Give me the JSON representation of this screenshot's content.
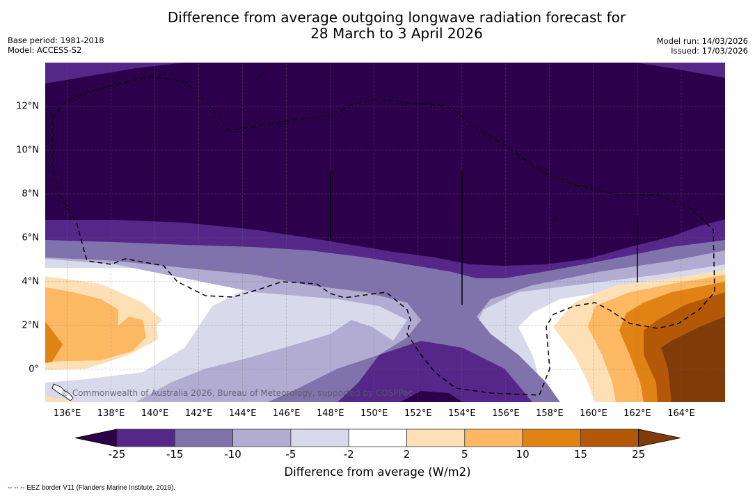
{
  "header": {
    "title_line1": "Difference from average outgoing longwave radiation forecast for",
    "title_line2": "28 March to 3 April 2026",
    "base_period": "Base period: 1981-2018",
    "model": "Model: ACCESS-S2",
    "model_run": "Model run: 14/03/2026",
    "issued": "Issued: 17/03/2026"
  },
  "map": {
    "extent": {
      "lon_min": 135.0,
      "lon_max": 166.0,
      "lat_min": -1.5,
      "lat_max": 14.0
    },
    "lat_ticks": [
      "12°N",
      "10°N",
      "8°N",
      "6°N",
      "4°N",
      "2°N",
      "0°"
    ],
    "lat_values": [
      12,
      10,
      8,
      6,
      4,
      2,
      0
    ],
    "lon_ticks": [
      "136°E",
      "138°E",
      "140°E",
      "142°E",
      "144°E",
      "146°E",
      "148°E",
      "150°E",
      "152°E",
      "154°E",
      "156°E",
      "158°E",
      "160°E",
      "162°E",
      "164°E"
    ],
    "lon_values": [
      136,
      138,
      140,
      142,
      144,
      146,
      148,
      150,
      152,
      154,
      156,
      158,
      160,
      162,
      164
    ],
    "copyright": "© Commonwealth of Australia 2026, Bureau of Meteorology, supported by COSPPac"
  },
  "colorbar": {
    "label": "Difference from average (W/m2)",
    "ticks": [
      "-25",
      "-15",
      "-10",
      "-5",
      "-2",
      "2",
      "5",
      "10",
      "15",
      "25"
    ],
    "colors": {
      "below_-25": "#2d004b",
      "-25_-15": "#542788",
      "-15_-10": "#8073ac",
      "-10_-5": "#b2abd2",
      "-5_-2": "#d8daeb",
      "-2_2": "#ffffff",
      "2_5": "#fee0b6",
      "5_10": "#fdb863",
      "10_15": "#e08214",
      "15_25": "#b35806",
      "above_25": "#7f3b08"
    }
  },
  "footnote": "--  --  -- EEZ border V11 (Flanders Marine Institute, 2019)."
}
